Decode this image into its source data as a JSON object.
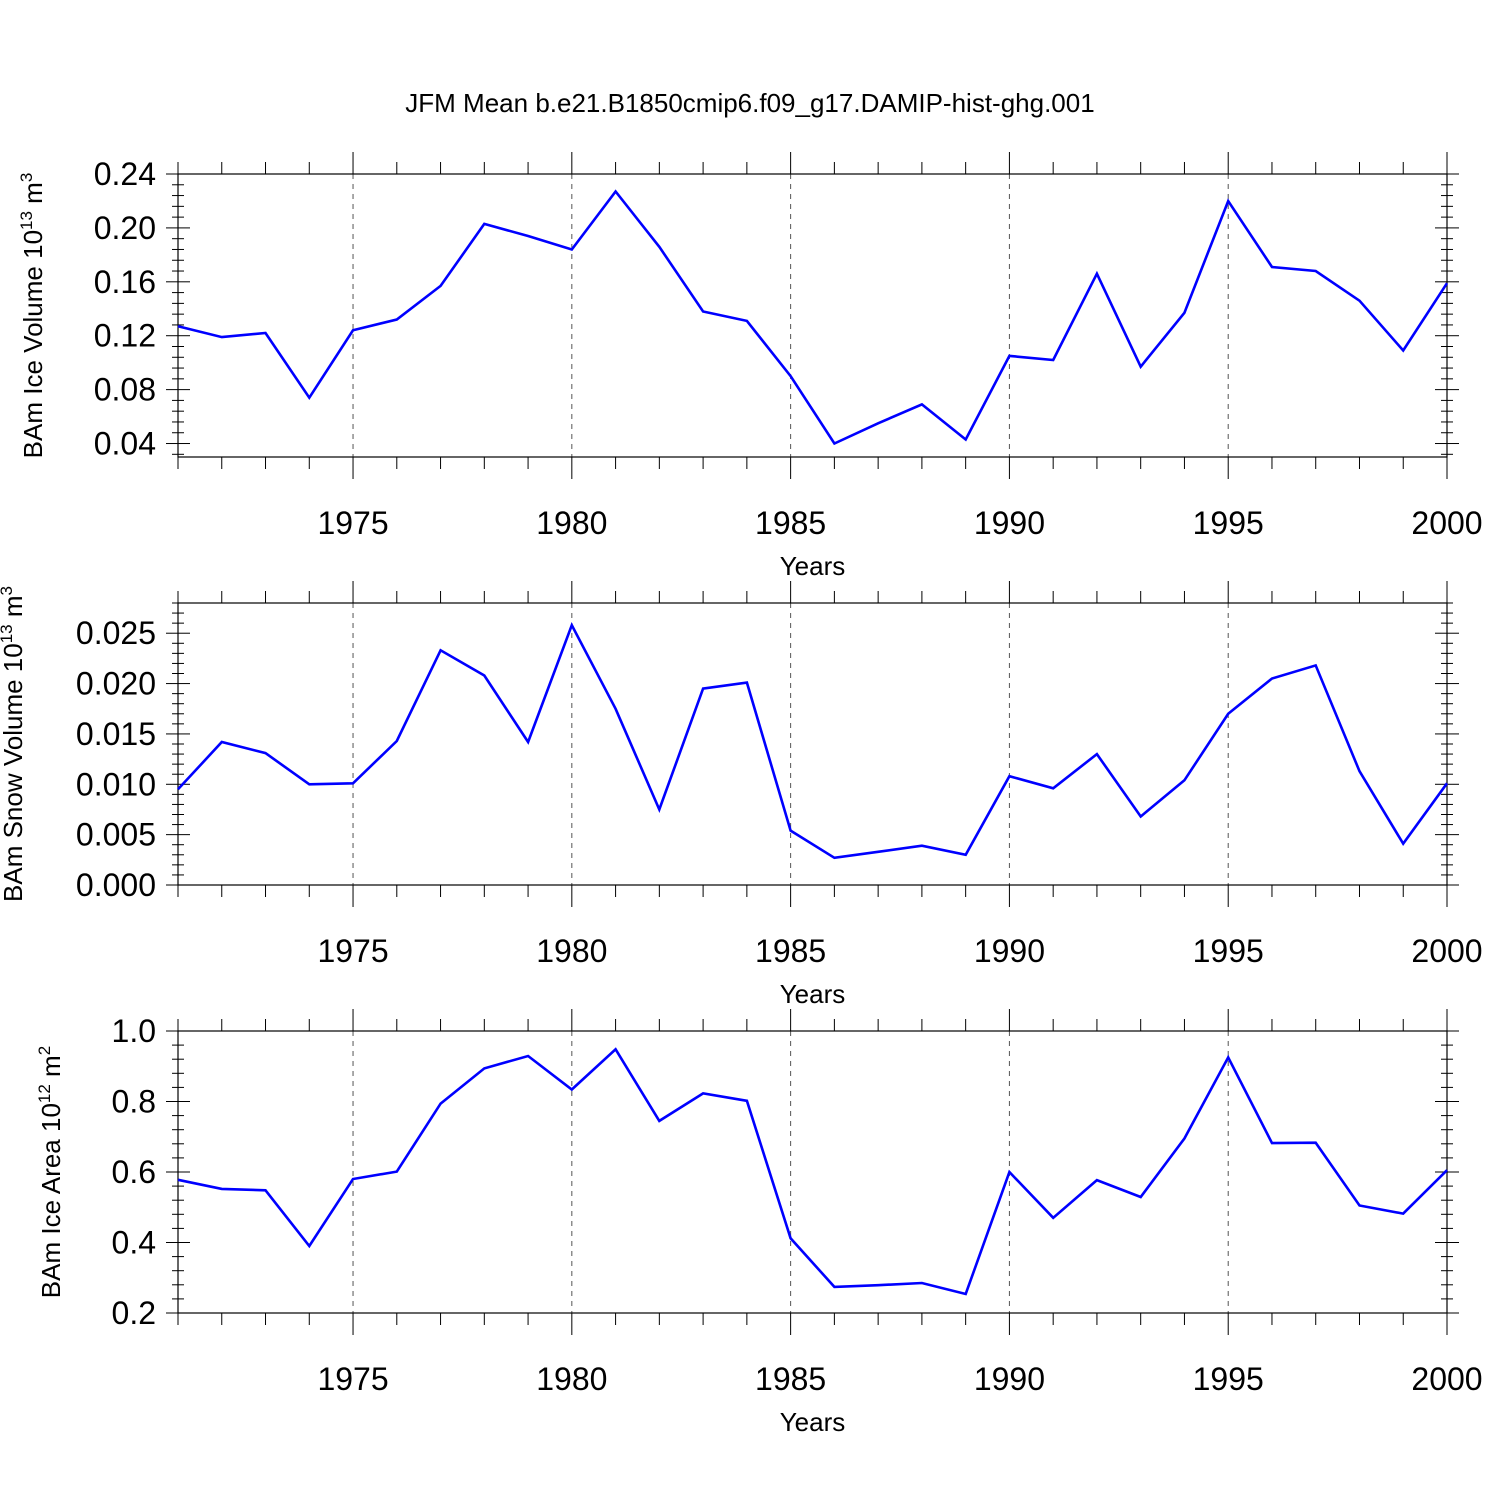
{
  "title": "JFM Mean b.e21.B1850cmip6.f09_g17.DAMIP-hist-ghg.001",
  "line_color": "#0000ff",
  "chart_data": [
    {
      "type": "line",
      "ylabel": {
        "base": "BAm Ice Volume 10",
        "exp": "13",
        "unit": " m",
        "unit_exp": "3"
      },
      "xlabel": "Years",
      "xlim": [
        1971,
        2000
      ],
      "ylim": [
        0.03,
        0.24
      ],
      "yticks": [
        0.04,
        0.08,
        0.12,
        0.16,
        0.2,
        0.24
      ],
      "yticklabels": [
        "0.04",
        "0.08",
        "0.12",
        "0.16",
        "0.20",
        "0.24"
      ],
      "xticks": [
        1975,
        1980,
        1985,
        1990,
        1995,
        2000
      ],
      "xticklabels": [
        "1975",
        "1980",
        "1985",
        "1990",
        "1995",
        "2000"
      ],
      "series": [
        {
          "name": "BAm Ice Volume",
          "x": [
            1971,
            1972,
            1973,
            1974,
            1975,
            1976,
            1977,
            1978,
            1979,
            1980,
            1981,
            1982,
            1983,
            1984,
            1985,
            1986,
            1987,
            1988,
            1989,
            1990,
            1991,
            1992,
            1993,
            1994,
            1995,
            1996,
            1997,
            1998,
            1999,
            2000
          ],
          "values": [
            0.127,
            0.119,
            0.122,
            0.074,
            0.124,
            0.132,
            0.157,
            0.203,
            0.194,
            0.184,
            0.227,
            0.186,
            0.138,
            0.131,
            0.09,
            0.04,
            0.055,
            0.069,
            0.043,
            0.105,
            0.102,
            0.166,
            0.097,
            0.137,
            0.22,
            0.171,
            0.168,
            0.146,
            0.109,
            0.159
          ]
        }
      ]
    },
    {
      "type": "line",
      "ylabel": {
        "base": "BAm Snow Volume 10",
        "exp": "13",
        "unit": " m",
        "unit_exp": "3"
      },
      "xlabel": "Years",
      "xlim": [
        1971,
        2000
      ],
      "ylim": [
        0.0,
        0.028
      ],
      "yticks": [
        0.0,
        0.005,
        0.01,
        0.015,
        0.02,
        0.025
      ],
      "yticklabels": [
        "0.000",
        "0.005",
        "0.010",
        "0.015",
        "0.020",
        "0.025"
      ],
      "xticks": [
        1975,
        1980,
        1985,
        1990,
        1995,
        2000
      ],
      "xticklabels": [
        "1975",
        "1980",
        "1985",
        "1990",
        "1995",
        "2000"
      ],
      "series": [
        {
          "name": "BAm Snow Volume",
          "x": [
            1971,
            1972,
            1973,
            1974,
            1975,
            1976,
            1977,
            1978,
            1979,
            1980,
            1981,
            1982,
            1983,
            1984,
            1985,
            1986,
            1987,
            1988,
            1989,
            1990,
            1991,
            1992,
            1993,
            1994,
            1995,
            1996,
            1997,
            1998,
            1999,
            2000
          ],
          "values": [
            0.0095,
            0.0142,
            0.0131,
            0.01,
            0.0101,
            0.0143,
            0.0233,
            0.0208,
            0.0142,
            0.0258,
            0.0175,
            0.0075,
            0.0195,
            0.0201,
            0.0054,
            0.0027,
            0.0033,
            0.0039,
            0.003,
            0.0108,
            0.0096,
            0.013,
            0.0068,
            0.0104,
            0.017,
            0.0205,
            0.0218,
            0.0113,
            0.0041,
            0.0101
          ]
        }
      ]
    },
    {
      "type": "line",
      "ylabel": {
        "base": "BAm Ice Area 10",
        "exp": "12",
        "unit": " m",
        "unit_exp": "2"
      },
      "xlabel": "Years",
      "xlim": [
        1971,
        2000
      ],
      "ylim": [
        0.2,
        1.0
      ],
      "yticks": [
        0.2,
        0.4,
        0.6,
        0.8,
        1.0
      ],
      "yticklabels": [
        "0.2",
        "0.4",
        "0.6",
        "0.8",
        "1.0"
      ],
      "xticks": [
        1975,
        1980,
        1985,
        1990,
        1995,
        2000
      ],
      "xticklabels": [
        "1975",
        "1980",
        "1985",
        "1990",
        "1995",
        "2000"
      ],
      "series": [
        {
          "name": "BAm Ice Area",
          "x": [
            1971,
            1972,
            1973,
            1974,
            1975,
            1976,
            1977,
            1978,
            1979,
            1980,
            1981,
            1982,
            1983,
            1984,
            1985,
            1986,
            1987,
            1988,
            1989,
            1990,
            1991,
            1992,
            1993,
            1994,
            1995,
            1996,
            1997,
            1998,
            1999,
            2000
          ],
          "values": [
            0.578,
            0.552,
            0.548,
            0.39,
            0.58,
            0.601,
            0.794,
            0.894,
            0.929,
            0.834,
            0.948,
            0.745,
            0.823,
            0.802,
            0.412,
            0.274,
            0.279,
            0.285,
            0.254,
            0.6,
            0.47,
            0.577,
            0.529,
            0.695,
            0.925,
            0.682,
            0.683,
            0.505,
            0.482,
            0.605
          ]
        }
      ]
    }
  ]
}
